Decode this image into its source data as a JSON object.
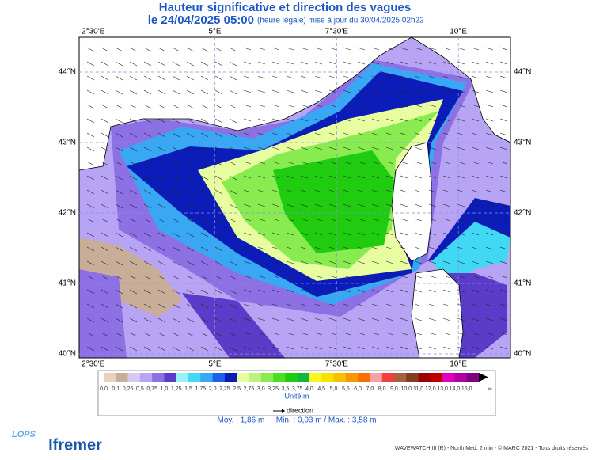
{
  "header": {
    "title": "Hauteur significative et direction des vagues",
    "date": "le 24/04/2025 05:00",
    "note": "(heure légale) mise à jour du 30/04/2025 02h22"
  },
  "map": {
    "xlim": [
      2.213,
      11.07
    ],
    "ylim": [
      39.944,
      44.494
    ],
    "xticks": [
      {
        "value": 2.5,
        "label": "2°30'E"
      },
      {
        "value": 5,
        "label": "5°E"
      },
      {
        "value": 7.5,
        "label": "7°30'E"
      },
      {
        "value": 10,
        "label": "10°E"
      }
    ],
    "yticks": [
      {
        "value": 44,
        "label": "44°N"
      },
      {
        "value": 43,
        "label": "43°N"
      },
      {
        "value": 42,
        "label": "42°N"
      },
      {
        "value": 41,
        "label": "41°N"
      },
      {
        "value": 40,
        "label": "40°N"
      }
    ],
    "grid": true
  },
  "legend": {
    "labels": [
      "0,0",
      "0,1",
      "0,25",
      "0,5",
      "0,75",
      "1,0",
      "1,25",
      "1,5",
      "1,75",
      "2,0",
      "2,25",
      "2,5",
      "2,75",
      "3,0",
      "3,25",
      "3,5",
      "3,75",
      "4,0",
      "4,5",
      "5,0",
      "5,5",
      "6,0",
      "7,0",
      "8,0",
      "9,0",
      "10,0",
      "11,0",
      "12,0",
      "13,0",
      "14,0",
      "15,0",
      "∞"
    ],
    "colors": [
      "#e8d2bc",
      "#c8ae98",
      "#d8c8f0",
      "#b8a4f4",
      "#8c70e4",
      "#5a3cc8",
      "#98f0f8",
      "#40d8f4",
      "#38a8f4",
      "#2060e8",
      "#0c1cb8",
      "#e8fca0",
      "#c0f080",
      "#88ec50",
      "#48e020",
      "#20cc10",
      "#10b840",
      "#f8f820",
      "#f8e000",
      "#f8c000",
      "#f89800",
      "#f87000",
      "#f8a0a8",
      "#f04040",
      "#a86040",
      "#804020",
      "#a00000",
      "#c00000",
      "#e000c0",
      "#b000a0",
      "#800080"
    ],
    "unit": "Unité:m",
    "direction": "direction"
  },
  "stats": "Moy. : 1,86 m  -  Min. : 0,03 m / Max. : 3,58 m",
  "footer": "WAVEWATCH III (R) - North Med. 2 min - © MARC 2021 - Tous droits réservés",
  "logos": [
    "LOPS",
    "Ifremer"
  ]
}
